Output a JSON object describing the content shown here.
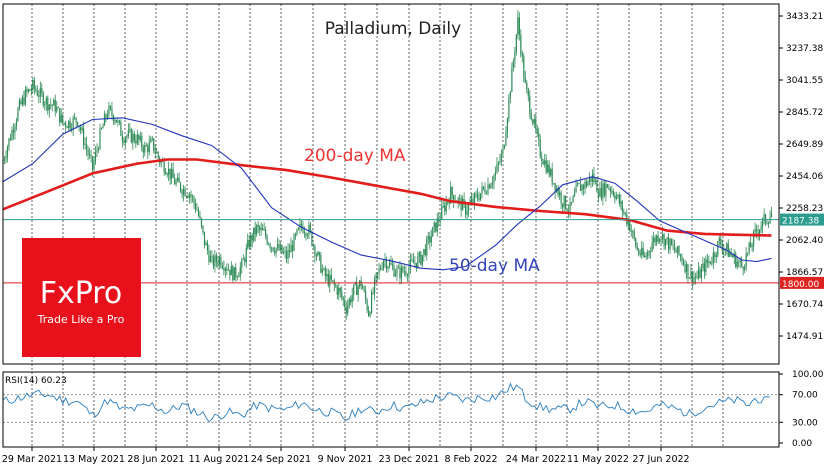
{
  "chart_data": [
    {
      "type": "candlestick",
      "title": "Palladium, Daily",
      "y_axis": {
        "ticks": [
          "3433.21",
          "3237.38",
          "3041.55",
          "2845.72",
          "2649.89",
          "2454.06",
          "2258.23",
          "2062.40",
          "1866.57",
          "1670.74",
          "1474.91"
        ],
        "tick_values": [
          3433.21,
          3237.38,
          3041.55,
          2845.72,
          2649.89,
          2454.06,
          2258.23,
          2062.4,
          1866.57,
          1670.74,
          1474.91
        ],
        "ylim": [
          1330,
          3500
        ]
      },
      "x_axis": {
        "tick_labels": [
          "29 Mar 2021",
          "13 May 2021",
          "28 Jun 2021",
          "11 Aug 2021",
          "24 Sep 2021",
          "9 Nov 2021",
          "23 Dec 2021",
          "8 Feb 2022",
          "24 Mar 2022",
          "11 May 2022",
          "27 Jun 2022"
        ]
      },
      "grid": true,
      "close_series": [
        [
          0,
          2550
        ],
        [
          5,
          2700
        ],
        [
          10,
          2850
        ],
        [
          15,
          2950
        ],
        [
          20,
          3000
        ],
        [
          25,
          2950
        ],
        [
          30,
          2900
        ],
        [
          35,
          2880
        ],
        [
          40,
          2780
        ],
        [
          45,
          2780
        ],
        [
          50,
          2800
        ],
        [
          55,
          2650
        ],
        [
          60,
          2500
        ],
        [
          65,
          2700
        ],
        [
          70,
          2850
        ],
        [
          75,
          2820
        ],
        [
          80,
          2700
        ],
        [
          85,
          2700
        ],
        [
          90,
          2680
        ],
        [
          95,
          2620
        ],
        [
          100,
          2650
        ],
        [
          105,
          2550
        ],
        [
          110,
          2500
        ],
        [
          115,
          2420
        ],
        [
          120,
          2380
        ],
        [
          125,
          2350
        ],
        [
          130,
          2250
        ],
        [
          135,
          2050
        ],
        [
          140,
          1920
        ],
        [
          145,
          1950
        ],
        [
          150,
          1900
        ],
        [
          155,
          1850
        ],
        [
          160,
          1900
        ],
        [
          165,
          2050
        ],
        [
          170,
          2130
        ],
        [
          175,
          2100
        ],
        [
          180,
          2030
        ],
        [
          185,
          2000
        ],
        [
          190,
          1960
        ],
        [
          195,
          2050
        ],
        [
          200,
          2150
        ],
        [
          205,
          2120
        ],
        [
          210,
          1980
        ],
        [
          215,
          1850
        ],
        [
          220,
          1800
        ],
        [
          225,
          1750
        ],
        [
          230,
          1650
        ],
        [
          235,
          1750
        ],
        [
          240,
          1800
        ],
        [
          245,
          1620
        ],
        [
          250,
          1820
        ],
        [
          255,
          1950
        ],
        [
          260,
          1900
        ],
        [
          265,
          1860
        ],
        [
          270,
          1880
        ],
        [
          275,
          1920
        ],
        [
          280,
          1950
        ],
        [
          285,
          2050
        ],
        [
          290,
          2150
        ],
        [
          295,
          2250
        ],
        [
          300,
          2350
        ],
        [
          305,
          2300
        ],
        [
          310,
          2250
        ],
        [
          315,
          2300
        ],
        [
          320,
          2350
        ],
        [
          325,
          2400
        ],
        [
          330,
          2470
        ],
        [
          335,
          2600
        ],
        [
          340,
          3000
        ],
        [
          345,
          3400
        ],
        [
          350,
          3000
        ],
        [
          355,
          2800
        ],
        [
          360,
          2600
        ],
        [
          365,
          2500
        ],
        [
          370,
          2400
        ],
        [
          375,
          2300
        ],
        [
          380,
          2250
        ],
        [
          385,
          2380
        ],
        [
          390,
          2400
        ],
        [
          395,
          2450
        ],
        [
          400,
          2350
        ],
        [
          405,
          2400
        ],
        [
          410,
          2350
        ],
        [
          415,
          2250
        ],
        [
          420,
          2150
        ],
        [
          425,
          2000
        ],
        [
          430,
          1950
        ],
        [
          435,
          2050
        ],
        [
          440,
          2100
        ],
        [
          445,
          2050
        ],
        [
          450,
          2000
        ],
        [
          455,
          1950
        ],
        [
          460,
          1850
        ],
        [
          465,
          1830
        ],
        [
          470,
          1900
        ],
        [
          475,
          1950
        ],
        [
          480,
          2050
        ],
        [
          485,
          2000
        ],
        [
          490,
          1950
        ],
        [
          495,
          1900
        ],
        [
          500,
          2000
        ],
        [
          505,
          2120
        ],
        [
          510,
          2180
        ],
        [
          515,
          2220
        ]
      ],
      "series": [
        {
          "name": "200-day MA",
          "points": [
            [
              0,
              2250
            ],
            [
              30,
              2360
            ],
            [
              60,
              2470
            ],
            [
              90,
              2530
            ],
            [
              110,
              2555
            ],
            [
              130,
              2555
            ],
            [
              160,
              2520
            ],
            [
              190,
              2490
            ],
            [
              220,
              2445
            ],
            [
              250,
              2395
            ],
            [
              280,
              2345
            ],
            [
              300,
              2300
            ],
            [
              330,
              2265
            ],
            [
              360,
              2240
            ],
            [
              390,
              2220
            ],
            [
              420,
              2185
            ],
            [
              445,
              2120
            ],
            [
              470,
              2100
            ],
            [
              490,
              2095
            ],
            [
              515,
              2090
            ]
          ]
        },
        {
          "name": "50-day MA",
          "points": [
            [
              0,
              2420
            ],
            [
              20,
              2530
            ],
            [
              40,
              2710
            ],
            [
              60,
              2800
            ],
            [
              80,
              2810
            ],
            [
              100,
              2770
            ],
            [
              120,
              2700
            ],
            [
              140,
              2640
            ],
            [
              160,
              2500
            ],
            [
              180,
              2260
            ],
            [
              200,
              2140
            ],
            [
              220,
              2050
            ],
            [
              240,
              1970
            ],
            [
              260,
              1935
            ],
            [
              280,
              1890
            ],
            [
              295,
              1880
            ],
            [
              310,
              1900
            ],
            [
              330,
              2030
            ],
            [
              345,
              2160
            ],
            [
              360,
              2270
            ],
            [
              375,
              2400
            ],
            [
              395,
              2450
            ],
            [
              410,
              2410
            ],
            [
              425,
              2300
            ],
            [
              440,
              2180
            ],
            [
              455,
              2120
            ],
            [
              470,
              2060
            ],
            [
              485,
              2000
            ],
            [
              495,
              1940
            ],
            [
              505,
              1930
            ],
            [
              515,
              1950
            ]
          ]
        }
      ],
      "annotations": [
        {
          "text": "200-day MA",
          "color": "#ee3333"
        },
        {
          "text": "50-day MA",
          "color": "#3344bb"
        }
      ],
      "price_markers": [
        {
          "label": "2187.38",
          "value": 2187.38,
          "color": "#2a9d8f"
        },
        {
          "label": "1800.00",
          "value": 1800.0,
          "color": "#dd2222"
        }
      ]
    },
    {
      "type": "line",
      "title": "RSI(14) 60.23",
      "y_axis": {
        "ticks": [
          "100.00",
          "70.00",
          "30.00",
          "0.00"
        ],
        "tick_values": [
          100,
          70,
          30,
          0
        ],
        "ylim": [
          0,
          100
        ]
      },
      "levels": [
        70,
        30
      ],
      "series": [
        {
          "name": "RSI(14)",
          "points": [
            [
              0,
              60
            ],
            [
              10,
              65
            ],
            [
              20,
              70
            ],
            [
              30,
              70
            ],
            [
              40,
              62
            ],
            [
              50,
              60
            ],
            [
              60,
              40
            ],
            [
              70,
              62
            ],
            [
              80,
              48
            ],
            [
              90,
              50
            ],
            [
              100,
              55
            ],
            [
              110,
              45
            ],
            [
              120,
              55
            ],
            [
              130,
              45
            ],
            [
              140,
              35
            ],
            [
              150,
              45
            ],
            [
              160,
              40
            ],
            [
              170,
              55
            ],
            [
              180,
              50
            ],
            [
              190,
              48
            ],
            [
              200,
              58
            ],
            [
              210,
              48
            ],
            [
              220,
              44
            ],
            [
              230,
              35
            ],
            [
              240,
              50
            ],
            [
              250,
              45
            ],
            [
              260,
              55
            ],
            [
              270,
              50
            ],
            [
              280,
              58
            ],
            [
              290,
              65
            ],
            [
              300,
              68
            ],
            [
              310,
              62
            ],
            [
              320,
              66
            ],
            [
              330,
              67
            ],
            [
              340,
              80
            ],
            [
              345,
              82
            ],
            [
              350,
              65
            ],
            [
              360,
              52
            ],
            [
              370,
              48
            ],
            [
              380,
              50
            ],
            [
              390,
              60
            ],
            [
              400,
              52
            ],
            [
              410,
              55
            ],
            [
              420,
              48
            ],
            [
              430,
              45
            ],
            [
              440,
              55
            ],
            [
              450,
              50
            ],
            [
              460,
              42
            ],
            [
              470,
              52
            ],
            [
              480,
              58
            ],
            [
              490,
              62
            ],
            [
              500,
              55
            ],
            [
              505,
              66
            ],
            [
              510,
              60
            ],
            [
              515,
              60
            ]
          ]
        }
      ]
    }
  ],
  "brand": {
    "name": "FxPro",
    "tagline": "Trade Like a Pro",
    "color": "#e8101a"
  }
}
